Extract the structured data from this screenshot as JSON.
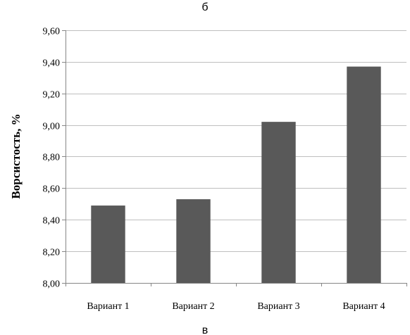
{
  "captions": {
    "top": "б",
    "bottom": "в"
  },
  "chart_data": {
    "type": "bar",
    "title": "",
    "xlabel": "",
    "ylabel": "Ворсистость, %",
    "categories": [
      "Вариант 1",
      "Вариант 2",
      "Вариант 3",
      "Вариант 4"
    ],
    "values": [
      8.49,
      8.53,
      9.02,
      9.37
    ],
    "ylim": [
      8.0,
      9.6
    ],
    "yticks": [
      8.0,
      8.2,
      8.4,
      8.6,
      8.8,
      9.0,
      9.2,
      9.4,
      9.6
    ],
    "ytick_labels": [
      "8,00",
      "8,20",
      "8,40",
      "8,60",
      "8,80",
      "9,00",
      "9,20",
      "9,40",
      "9,60"
    ],
    "grid": true,
    "legend": false,
    "colors": {
      "bar": "#595959",
      "grid": "#bfbfbf",
      "axis": "#868686"
    }
  }
}
